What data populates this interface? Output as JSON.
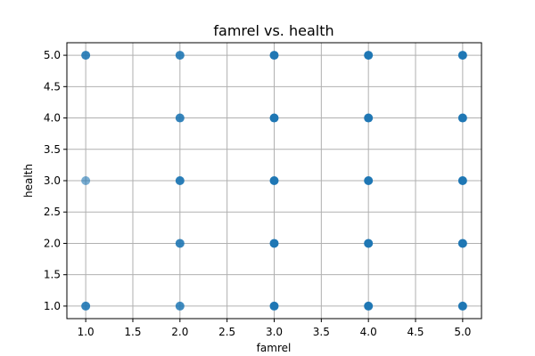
{
  "chart_data": {
    "type": "scatter",
    "title": "famrel vs. health",
    "xlabel": "famrel",
    "ylabel": "health",
    "xlim": [
      0.8,
      5.2
    ],
    "ylim": [
      0.8,
      5.2
    ],
    "x_ticks": [
      1.0,
      1.5,
      2.0,
      2.5,
      3.0,
      3.5,
      4.0,
      4.5,
      5.0
    ],
    "y_ticks": [
      1.0,
      1.5,
      2.0,
      2.5,
      3.0,
      3.5,
      4.0,
      4.5,
      5.0
    ],
    "grid": true,
    "color": "#1f77b4",
    "points": [
      {
        "x": 1,
        "y": 5,
        "density": 0.9
      },
      {
        "x": 1,
        "y": 3,
        "density": 0.6
      },
      {
        "x": 1,
        "y": 1,
        "density": 0.9
      },
      {
        "x": 2,
        "y": 5,
        "density": 0.9
      },
      {
        "x": 2,
        "y": 4,
        "density": 0.9
      },
      {
        "x": 2,
        "y": 3,
        "density": 0.95
      },
      {
        "x": 2,
        "y": 2,
        "density": 0.9
      },
      {
        "x": 2,
        "y": 1,
        "density": 0.85
      },
      {
        "x": 3,
        "y": 5,
        "density": 1.0
      },
      {
        "x": 3,
        "y": 4,
        "density": 1.0
      },
      {
        "x": 3,
        "y": 3,
        "density": 1.0
      },
      {
        "x": 3,
        "y": 2,
        "density": 1.0
      },
      {
        "x": 3,
        "y": 1,
        "density": 1.0
      },
      {
        "x": 4,
        "y": 5,
        "density": 1.0
      },
      {
        "x": 4,
        "y": 4,
        "density": 1.0
      },
      {
        "x": 4,
        "y": 3,
        "density": 1.0
      },
      {
        "x": 4,
        "y": 2,
        "density": 1.0
      },
      {
        "x": 4,
        "y": 1,
        "density": 1.0
      },
      {
        "x": 5,
        "y": 5,
        "density": 1.0
      },
      {
        "x": 5,
        "y": 4,
        "density": 1.0
      },
      {
        "x": 5,
        "y": 3,
        "density": 1.0
      },
      {
        "x": 5,
        "y": 2,
        "density": 1.0
      },
      {
        "x": 5,
        "y": 1,
        "density": 1.0
      }
    ]
  }
}
